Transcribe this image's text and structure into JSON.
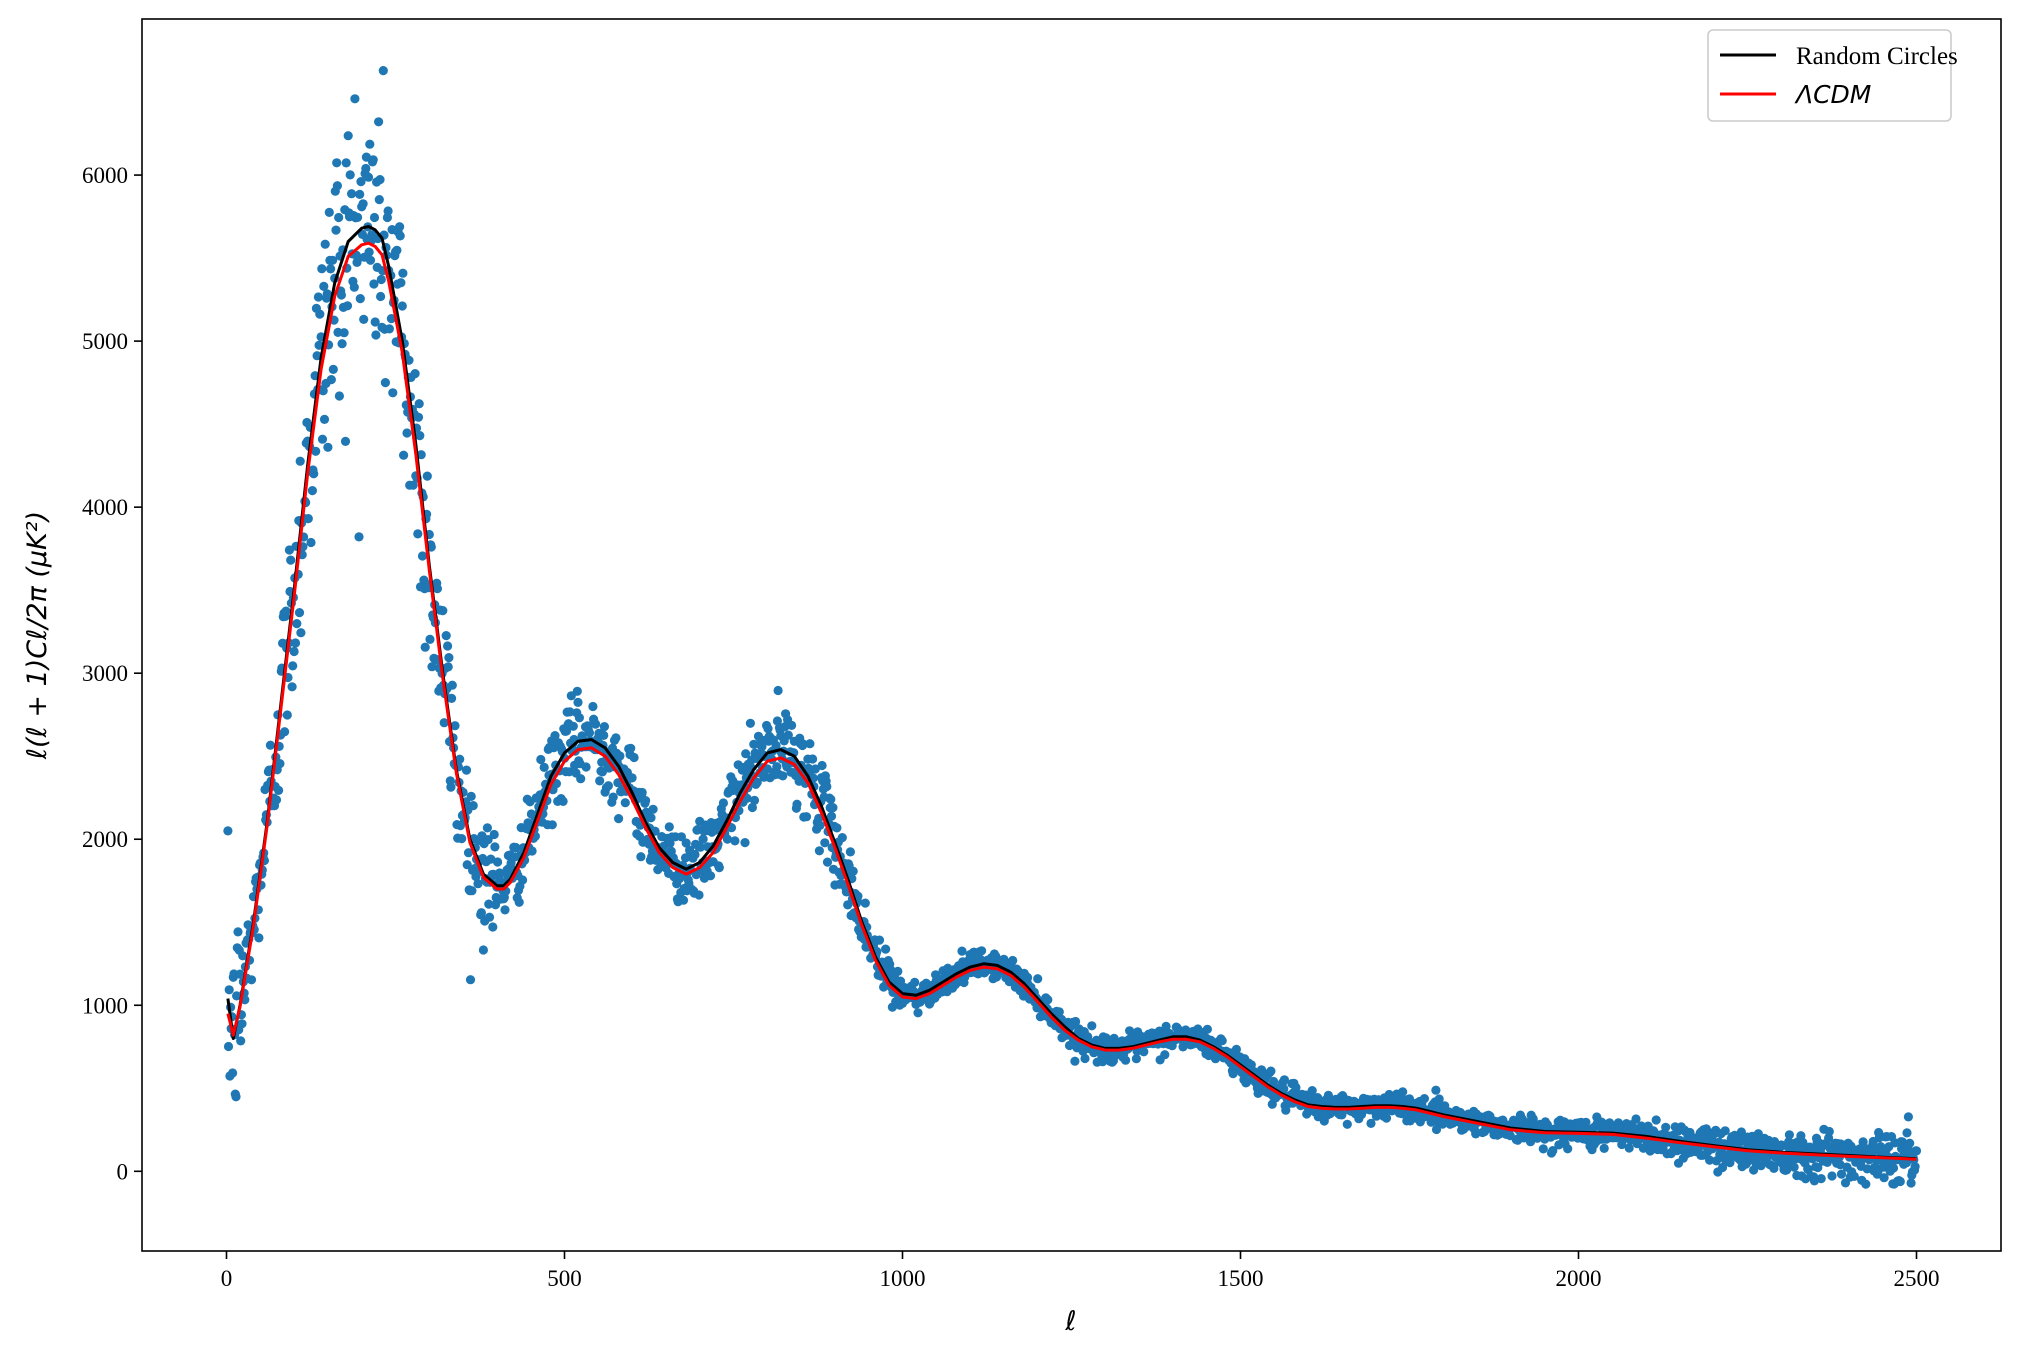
{
  "chart_data": {
    "type": "scatter",
    "title": "",
    "xlabel": "ℓ",
    "ylabel": "ℓ(ℓ + 1)Cℓ/2π (μK²)",
    "xlim": [
      -125,
      2625
    ],
    "ylim": [
      -480,
      6940
    ],
    "xticks": [
      0,
      500,
      1000,
      1500,
      2000,
      2500
    ],
    "xtick_labels": [
      "0",
      "500",
      "1000",
      "1500",
      "2000",
      "2500"
    ],
    "yticks": [
      0,
      1000,
      2000,
      3000,
      4000,
      5000,
      6000
    ],
    "ytick_labels": [
      "0",
      "1000",
      "2000",
      "3000",
      "4000",
      "5000",
      "6000"
    ],
    "grid": false,
    "legend_position": "top-right",
    "colors": {
      "scatter": "#1f77b4",
      "random_circles": "#000000",
      "lcdm": "#ff0000"
    },
    "series": [
      {
        "name": "Random Circles",
        "kind": "line",
        "x": [
          2,
          10,
          20,
          40,
          60,
          80,
          100,
          120,
          140,
          160,
          180,
          200,
          210,
          220,
          230,
          240,
          260,
          280,
          300,
          320,
          340,
          360,
          380,
          400,
          410,
          420,
          440,
          460,
          480,
          500,
          520,
          540,
          560,
          580,
          600,
          620,
          640,
          660,
          680,
          700,
          720,
          740,
          760,
          780,
          800,
          820,
          840,
          860,
          880,
          900,
          920,
          940,
          960,
          980,
          1000,
          1020,
          1040,
          1060,
          1080,
          1100,
          1120,
          1140,
          1160,
          1180,
          1200,
          1220,
          1240,
          1260,
          1280,
          1300,
          1320,
          1340,
          1360,
          1380,
          1400,
          1420,
          1440,
          1460,
          1480,
          1500,
          1520,
          1540,
          1560,
          1580,
          1600,
          1620,
          1640,
          1660,
          1680,
          1700,
          1720,
          1740,
          1760,
          1780,
          1800,
          1850,
          1900,
          1950,
          2000,
          2050,
          2100,
          2150,
          2200,
          2250,
          2300,
          2350,
          2400,
          2450,
          2500
        ],
        "y": [
          1040,
          800,
          1000,
          1500,
          2100,
          2800,
          3500,
          4250,
          4900,
          5350,
          5600,
          5680,
          5690,
          5670,
          5620,
          5450,
          5000,
          4380,
          3650,
          3000,
          2420,
          2000,
          1790,
          1720,
          1720,
          1760,
          1920,
          2150,
          2380,
          2520,
          2590,
          2600,
          2550,
          2440,
          2280,
          2100,
          1950,
          1860,
          1820,
          1860,
          1960,
          2110,
          2280,
          2420,
          2520,
          2540,
          2500,
          2380,
          2200,
          1980,
          1750,
          1500,
          1290,
          1140,
          1070,
          1060,
          1090,
          1140,
          1190,
          1230,
          1250,
          1240,
          1200,
          1130,
          1040,
          950,
          870,
          800,
          760,
          740,
          740,
          750,
          770,
          790,
          810,
          810,
          790,
          750,
          700,
          640,
          580,
          520,
          470,
          430,
          400,
          390,
          385,
          385,
          390,
          395,
          395,
          390,
          380,
          360,
          340,
          300,
          260,
          240,
          235,
          230,
          210,
          180,
          155,
          130,
          115,
          105,
          95,
          85,
          75
        ]
      },
      {
        "name": "ΛCDM",
        "kind": "line",
        "x": [
          2,
          10,
          20,
          40,
          60,
          80,
          100,
          120,
          140,
          160,
          180,
          200,
          210,
          220,
          230,
          240,
          260,
          280,
          300,
          320,
          340,
          360,
          380,
          400,
          410,
          420,
          440,
          460,
          480,
          500,
          520,
          540,
          560,
          580,
          600,
          620,
          640,
          660,
          680,
          700,
          720,
          740,
          760,
          780,
          800,
          820,
          840,
          860,
          880,
          900,
          920,
          940,
          960,
          980,
          1000,
          1020,
          1040,
          1060,
          1080,
          1100,
          1120,
          1140,
          1160,
          1180,
          1200,
          1220,
          1240,
          1260,
          1280,
          1300,
          1320,
          1340,
          1360,
          1380,
          1400,
          1420,
          1440,
          1460,
          1480,
          1500,
          1520,
          1540,
          1560,
          1580,
          1600,
          1620,
          1640,
          1660,
          1680,
          1700,
          1720,
          1740,
          1760,
          1780,
          1800,
          1850,
          1900,
          1950,
          2000,
          2050,
          2100,
          2150,
          2200,
          2250,
          2300,
          2350,
          2400,
          2450,
          2500
        ],
        "y": [
          950,
          820,
          990,
          1480,
          2080,
          2770,
          3460,
          4200,
          4830,
          5270,
          5510,
          5580,
          5590,
          5570,
          5520,
          5360,
          4930,
          4320,
          3620,
          2970,
          2400,
          1980,
          1770,
          1700,
          1700,
          1740,
          1890,
          2110,
          2330,
          2470,
          2540,
          2550,
          2500,
          2390,
          2240,
          2070,
          1920,
          1830,
          1790,
          1830,
          1920,
          2070,
          2230,
          2370,
          2470,
          2490,
          2450,
          2340,
          2160,
          1950,
          1720,
          1480,
          1270,
          1120,
          1050,
          1040,
          1070,
          1120,
          1170,
          1210,
          1230,
          1220,
          1180,
          1110,
          1020,
          930,
          850,
          790,
          750,
          730,
          730,
          740,
          760,
          780,
          795,
          795,
          780,
          740,
          690,
          630,
          570,
          510,
          460,
          420,
          390,
          380,
          375,
          375,
          380,
          385,
          385,
          380,
          370,
          350,
          330,
          290,
          250,
          232,
          228,
          222,
          200,
          172,
          148,
          124,
          110,
          100,
          90,
          82,
          72
        ]
      },
      {
        "name": "",
        "kind": "scatter",
        "description_free": true,
        "x_range": [
          2,
          2500
        ],
        "spacing": 1,
        "noise_sd": "relative"
      }
    ],
    "legend": [
      {
        "label": "Random Circles",
        "color": "#000000",
        "style": "normal"
      },
      {
        "label": "ΛCDM",
        "color": "#ff0000",
        "style": "math"
      }
    ]
  }
}
